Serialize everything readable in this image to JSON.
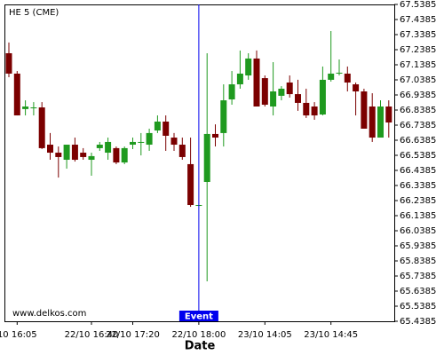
{
  "chart_data": {
    "type": "candlestick",
    "title": "HE 5 (CME)",
    "watermark": "www.delkos.com",
    "x_label": "Date",
    "up_color": "#1f9a1f",
    "down_color": "#7b0000",
    "event": {
      "label": "Event",
      "x": "22/10 18:00",
      "color": "#0000ee"
    },
    "categories": [
      null,
      "10 16:05",
      null,
      null,
      null,
      null,
      null,
      null,
      null,
      null,
      "22/10 16:40",
      null,
      null,
      null,
      null,
      "22/10 17:20",
      null,
      null,
      null,
      null,
      null,
      null,
      null,
      "22/10 18:00",
      null,
      null,
      null,
      null,
      null,
      null,
      null,
      "23/10 14:05",
      null,
      null,
      null,
      null,
      null,
      null,
      null,
      "23/10 14:45",
      null,
      null,
      null,
      null,
      null,
      null,
      null
    ],
    "open": [
      67.215,
      67.08,
      66.845,
      66.85,
      66.856,
      66.609,
      66.556,
      66.509,
      66.609,
      66.556,
      66.509,
      66.586,
      66.556,
      66.586,
      66.491,
      66.609,
      66.627,
      66.609,
      66.703,
      66.762,
      66.656,
      66.609,
      66.48,
      66.209,
      66.362,
      66.68,
      66.686,
      66.909,
      67.009,
      67.068,
      67.18,
      67.05,
      66.862,
      66.933,
      67.021,
      66.944,
      66.886,
      66.862,
      66.809,
      67.039,
      67.086,
      67.08,
      67.009,
      66.962,
      66.862,
      66.656,
      66.862
    ],
    "high": [
      67.286,
      67.097,
      66.903,
      66.891,
      66.891,
      66.686,
      66.597,
      66.609,
      66.656,
      66.586,
      66.556,
      66.627,
      66.656,
      66.597,
      66.597,
      66.656,
      66.686,
      66.715,
      66.803,
      66.803,
      66.686,
      66.656,
      66.656,
      66.209,
      67.215,
      66.744,
      67.009,
      67.097,
      67.233,
      67.215,
      67.233,
      67.068,
      67.156,
      66.997,
      67.068,
      67.039,
      66.98,
      66.891,
      67.127,
      67.362,
      67.174,
      67.127,
      67.021,
      66.98,
      66.95,
      66.903,
      66.903
    ],
    "low": [
      67.056,
      66.803,
      66.803,
      66.803,
      66.58,
      66.509,
      66.391,
      66.45,
      66.497,
      66.509,
      66.403,
      66.568,
      66.509,
      66.48,
      66.48,
      66.58,
      66.538,
      66.568,
      66.686,
      66.568,
      66.568,
      66.509,
      66.197,
      66.209,
      65.703,
      66.597,
      66.597,
      66.874,
      66.98,
      67.039,
      66.862,
      66.862,
      66.803,
      66.903,
      66.921,
      66.833,
      66.786,
      66.774,
      66.803,
      67.027,
      67.068,
      66.962,
      66.803,
      66.715,
      66.627,
      66.656,
      66.656
    ],
    "close": [
      67.08,
      66.803,
      66.862,
      66.856,
      66.586,
      66.556,
      66.527,
      66.609,
      66.509,
      66.527,
      66.533,
      66.609,
      66.627,
      66.491,
      66.586,
      66.627,
      66.627,
      66.686,
      66.762,
      66.668,
      66.609,
      66.527,
      66.209,
      66.209,
      66.68,
      66.656,
      66.903,
      67.009,
      67.08,
      67.18,
      66.862,
      66.874,
      66.962,
      66.98,
      66.944,
      66.886,
      66.803,
      66.803,
      67.039,
      67.08,
      67.086,
      67.021,
      66.962,
      66.715,
      66.656,
      66.862,
      66.756
    ],
    "ylim": [
      65.4385,
      67.5385
    ],
    "yticks": [
      67.5385,
      67.4385,
      67.3385,
      67.2385,
      67.1385,
      67.0385,
      66.9385,
      66.8385,
      66.7385,
      66.6385,
      66.5385,
      66.4385,
      66.3385,
      66.2385,
      66.1385,
      66.0385,
      65.9385,
      65.8385,
      65.7385,
      65.6385,
      65.5385,
      65.4385
    ]
  }
}
